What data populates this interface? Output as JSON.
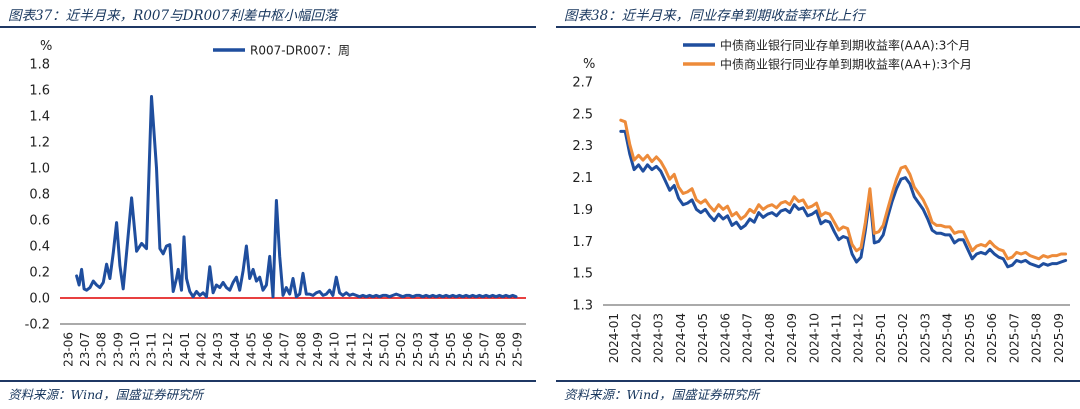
{
  "left": {
    "title": "图表37：近半月来，R007与DR007利差中枢小幅回落",
    "source": "资料来源：Wind，国盛证券研究所",
    "chart_data": {
      "type": "line",
      "ylabel": "%",
      "ylim": [
        -0.2,
        1.8
      ],
      "yticks": [
        -0.2,
        0.0,
        0.2,
        0.4,
        0.6,
        0.8,
        1.0,
        1.2,
        1.4,
        1.6,
        1.8
      ],
      "yticklabels": [
        "-0.2",
        "0.0",
        "0.2",
        "0.4",
        "0.6",
        "0.8",
        "1.0",
        "1.2",
        "1.4",
        "1.6",
        "1.8"
      ],
      "categories": [
        "23-06",
        "23-07",
        "23-08",
        "23-09",
        "23-10",
        "23-11",
        "23-12",
        "24-01",
        "24-02",
        "24-03",
        "24-04",
        "24-05",
        "24-06",
        "24-07",
        "24-08",
        "24-09",
        "24-10",
        "24-11",
        "24-12",
        "25-01",
        "25-02",
        "25-03",
        "25-04",
        "25-05",
        "25-06",
        "25-07",
        "25-08",
        "25-09"
      ],
      "reference_line": {
        "y": 0.0,
        "color": "#e00000"
      },
      "series": [
        {
          "name": "R007-DR007：周",
          "color": "#1f4e9e",
          "x": [
            1.0,
            1.15,
            1.3,
            1.45,
            1.6,
            1.8,
            2.0,
            2.2,
            2.4,
            2.6,
            2.8,
            3.0,
            3.2,
            3.4,
            3.6,
            3.8,
            4.0,
            4.3,
            4.6,
            4.9,
            5.2,
            5.5,
            5.8,
            6.0,
            6.2,
            6.4,
            6.6,
            6.8,
            7.0,
            7.1,
            7.2,
            7.3,
            7.45,
            7.6,
            7.8,
            8.0,
            8.2,
            8.4,
            8.6,
            8.8,
            9.0,
            9.2,
            9.4,
            9.6,
            9.8,
            10.0,
            10.2,
            10.4,
            10.6,
            10.8,
            11.0,
            11.2,
            11.4,
            11.6,
            11.8,
            12.0,
            12.2,
            12.4,
            12.6,
            12.8,
            13.0,
            13.2,
            13.4,
            13.6,
            13.8,
            14.0,
            14.2,
            14.4,
            14.6,
            14.8,
            15.0,
            15.2,
            15.4,
            15.6,
            15.8,
            16.0,
            16.2,
            16.4,
            16.6,
            16.8,
            17.0,
            17.2,
            17.4,
            17.6,
            17.8,
            18.0,
            18.2,
            18.4,
            18.6,
            18.8,
            19.0,
            19.2,
            19.4,
            19.6,
            19.8,
            20.0,
            20.2,
            20.4,
            20.6,
            20.8,
            21.0,
            21.2,
            21.4,
            21.6,
            21.8,
            22.0,
            22.2,
            22.4,
            22.6,
            22.8,
            23.0,
            23.2,
            23.4,
            23.6,
            23.8,
            24.0,
            24.2,
            24.4,
            24.6,
            24.8,
            25.0,
            25.2,
            25.4,
            25.6,
            25.8,
            26.0,
            26.2,
            26.4,
            26.6,
            26.8,
            27.0,
            27.2,
            27.4
          ],
          "values": [
            0.17,
            0.1,
            0.22,
            0.07,
            0.06,
            0.08,
            0.13,
            0.1,
            0.08,
            0.12,
            0.26,
            0.15,
            0.35,
            0.58,
            0.25,
            0.07,
            0.35,
            0.77,
            0.36,
            0.42,
            0.38,
            1.55,
            1.0,
            0.38,
            0.34,
            0.4,
            0.41,
            0.05,
            0.15,
            0.22,
            0.14,
            0.06,
            0.47,
            0.15,
            0.05,
            0.01,
            0.05,
            0.02,
            0.04,
            0.01,
            0.24,
            0.04,
            0.1,
            0.08,
            0.12,
            0.08,
            0.06,
            0.12,
            0.16,
            0.06,
            0.21,
            0.4,
            0.15,
            0.22,
            0.13,
            0.16,
            0.06,
            0.1,
            0.32,
            0.01,
            0.75,
            0.32,
            0.02,
            0.08,
            0.03,
            0.15,
            0.01,
            0.03,
            0.19,
            0.03,
            0.03,
            0.02,
            0.04,
            0.05,
            0.02,
            0.03,
            0.06,
            0.02,
            0.16,
            0.04,
            0.02,
            0.04,
            0.02,
            0.03,
            0.02,
            0.01,
            0.02,
            0.01,
            0.02,
            0.01,
            0.02,
            0.01,
            0.02,
            0.02,
            0.01,
            0.02,
            0.03,
            0.02,
            0.01,
            0.02,
            0.02,
            0.01,
            0.02,
            0.02,
            0.01,
            0.02,
            0.01,
            0.02,
            0.01,
            0.02,
            0.01,
            0.02,
            0.01,
            0.02,
            0.01,
            0.02,
            0.01,
            0.02,
            0.01,
            0.02,
            0.01,
            0.02,
            0.01,
            0.02,
            0.01,
            0.02,
            0.01,
            0.02,
            0.01,
            0.02,
            0.01,
            0.02,
            0.01
          ]
        }
      ]
    }
  },
  "right": {
    "title": "图表38：近半月来，同业存单到期收益率环比上行",
    "source": "资料来源：Wind，国盛证券研究所",
    "chart_data": {
      "type": "line",
      "ylabel": "%",
      "ylim": [
        1.3,
        2.7
      ],
      "yticks": [
        1.3,
        1.5,
        1.7,
        1.9,
        2.1,
        2.3,
        2.5,
        2.7
      ],
      "yticklabels": [
        "1.3",
        "1.5",
        "1.7",
        "1.9",
        "2.1",
        "2.3",
        "2.5",
        "2.7"
      ],
      "categories": [
        "2024-01",
        "2024-02",
        "2024-03",
        "2024-04",
        "2024-05",
        "2024-06",
        "2024-07",
        "2024-08",
        "2024-09",
        "2024-10",
        "2024-11",
        "2024-12",
        "2025-01",
        "2025-02",
        "2025-03",
        "2025-04",
        "2025-05",
        "2025-06",
        "2025-07",
        "2025-08",
        "2025-09"
      ],
      "series": [
        {
          "name": "中债商业银行同业存单到期收益率(AAA):3个月",
          "color": "#1f4e9e",
          "x": [
            0.8,
            1.0,
            1.2,
            1.4,
            1.6,
            1.8,
            2.0,
            2.2,
            2.4,
            2.6,
            2.8,
            3.0,
            3.2,
            3.4,
            3.6,
            3.8,
            4.0,
            4.2,
            4.4,
            4.6,
            4.8,
            5.0,
            5.2,
            5.4,
            5.6,
            5.8,
            6.0,
            6.2,
            6.4,
            6.6,
            6.8,
            7.0,
            7.2,
            7.4,
            7.6,
            7.8,
            8.0,
            8.2,
            8.4,
            8.6,
            8.8,
            9.0,
            9.2,
            9.4,
            9.6,
            9.8,
            10.0,
            10.2,
            10.4,
            10.6,
            10.8,
            11.0,
            11.2,
            11.4,
            11.6,
            11.8,
            12.0,
            12.2,
            12.4,
            12.6,
            12.8,
            13.0,
            13.2,
            13.4,
            13.6,
            13.8,
            14.0,
            14.2,
            14.4,
            14.6,
            14.8,
            15.0,
            15.2,
            15.4,
            15.6,
            15.8,
            16.0,
            16.2,
            16.4,
            16.6,
            16.8,
            17.0,
            17.2,
            17.4,
            17.6,
            17.8,
            18.0,
            18.2,
            18.4,
            18.6,
            18.8,
            19.0,
            19.2,
            19.4,
            19.6,
            19.8,
            20.0,
            20.2,
            20.4,
            20.6,
            20.8
          ],
          "values": [
            2.39,
            2.39,
            2.25,
            2.15,
            2.18,
            2.14,
            2.18,
            2.15,
            2.17,
            2.14,
            2.08,
            2.02,
            2.05,
            1.97,
            1.93,
            1.94,
            1.96,
            1.9,
            1.88,
            1.9,
            1.86,
            1.83,
            1.87,
            1.84,
            1.86,
            1.8,
            1.82,
            1.78,
            1.8,
            1.84,
            1.82,
            1.88,
            1.85,
            1.87,
            1.88,
            1.86,
            1.89,
            1.9,
            1.88,
            1.93,
            1.9,
            1.91,
            1.86,
            1.87,
            1.89,
            1.81,
            1.83,
            1.82,
            1.76,
            1.71,
            1.73,
            1.72,
            1.62,
            1.57,
            1.6,
            1.77,
            1.98,
            1.69,
            1.7,
            1.74,
            1.85,
            1.95,
            2.03,
            2.09,
            2.1,
            2.06,
            1.98,
            1.94,
            1.9,
            1.84,
            1.77,
            1.75,
            1.75,
            1.74,
            1.74,
            1.69,
            1.71,
            1.71,
            1.65,
            1.59,
            1.62,
            1.63,
            1.62,
            1.65,
            1.62,
            1.6,
            1.59,
            1.54,
            1.55,
            1.58,
            1.57,
            1.58,
            1.56,
            1.55,
            1.54,
            1.56,
            1.55,
            1.56,
            1.56,
            1.57,
            1.58
          ]
        },
        {
          "name": "中债商业银行同业存单到期收益率(AA+):3个月",
          "color": "#ed8b3a",
          "x": [
            0.8,
            1.0,
            1.2,
            1.4,
            1.6,
            1.8,
            2.0,
            2.2,
            2.4,
            2.6,
            2.8,
            3.0,
            3.2,
            3.4,
            3.6,
            3.8,
            4.0,
            4.2,
            4.4,
            4.6,
            4.8,
            5.0,
            5.2,
            5.4,
            5.6,
            5.8,
            6.0,
            6.2,
            6.4,
            6.6,
            6.8,
            7.0,
            7.2,
            7.4,
            7.6,
            7.8,
            8.0,
            8.2,
            8.4,
            8.6,
            8.8,
            9.0,
            9.2,
            9.4,
            9.6,
            9.8,
            10.0,
            10.2,
            10.4,
            10.6,
            10.8,
            11.0,
            11.2,
            11.4,
            11.6,
            11.8,
            12.0,
            12.2,
            12.4,
            12.6,
            12.8,
            13.0,
            13.2,
            13.4,
            13.6,
            13.8,
            14.0,
            14.2,
            14.4,
            14.6,
            14.8,
            15.0,
            15.2,
            15.4,
            15.6,
            15.8,
            16.0,
            16.2,
            16.4,
            16.6,
            16.8,
            17.0,
            17.2,
            17.4,
            17.6,
            17.8,
            18.0,
            18.2,
            18.4,
            18.6,
            18.8,
            19.0,
            19.2,
            19.4,
            19.6,
            19.8,
            20.0,
            20.2,
            20.4,
            20.6,
            20.8
          ],
          "values": [
            2.46,
            2.45,
            2.31,
            2.21,
            2.24,
            2.21,
            2.24,
            2.2,
            2.23,
            2.2,
            2.15,
            2.09,
            2.12,
            2.04,
            2.0,
            2.01,
            2.03,
            1.96,
            1.94,
            1.96,
            1.92,
            1.89,
            1.93,
            1.9,
            1.92,
            1.86,
            1.88,
            1.84,
            1.86,
            1.9,
            1.88,
            1.93,
            1.9,
            1.92,
            1.93,
            1.91,
            1.94,
            1.95,
            1.93,
            1.98,
            1.95,
            1.96,
            1.91,
            1.92,
            1.94,
            1.86,
            1.88,
            1.87,
            1.82,
            1.77,
            1.79,
            1.78,
            1.68,
            1.64,
            1.66,
            1.82,
            2.03,
            1.75,
            1.76,
            1.8,
            1.9,
            2.0,
            2.09,
            2.16,
            2.17,
            2.12,
            2.04,
            2.0,
            1.96,
            1.9,
            1.82,
            1.8,
            1.8,
            1.79,
            1.79,
            1.75,
            1.76,
            1.76,
            1.7,
            1.64,
            1.67,
            1.68,
            1.67,
            1.7,
            1.67,
            1.65,
            1.64,
            1.59,
            1.6,
            1.63,
            1.62,
            1.63,
            1.61,
            1.6,
            1.59,
            1.61,
            1.6,
            1.61,
            1.61,
            1.62,
            1.62
          ]
        }
      ]
    }
  }
}
